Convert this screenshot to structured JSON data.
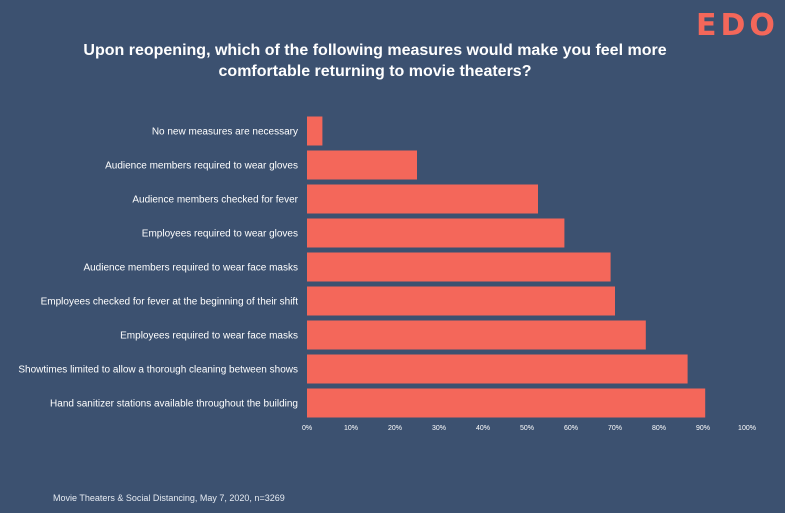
{
  "brand": {
    "logo_text": "EDO",
    "accent_color": "#f4675a"
  },
  "chart_data": {
    "type": "bar",
    "orientation": "horizontal",
    "title": "Upon reopening, which of the following measures would make you feel more comfortable returning to movie theaters?",
    "xlabel": "",
    "ylabel": "",
    "xlim": [
      0,
      100
    ],
    "x_ticks": [
      "0%",
      "10%",
      "20%",
      "30%",
      "40%",
      "50%",
      "60%",
      "70%",
      "80%",
      "90%",
      "100%"
    ],
    "categories": [
      "No new measures are necessary",
      "Audience members required to wear gloves",
      "Audience members checked for fever",
      "Employees required to wear gloves",
      "Audience members required to wear face masks",
      "Employees checked for fever at the beginning of their shift",
      "Employees required to wear face masks",
      "Showtimes limited to allow a thorough cleaning between shows",
      "Hand sanitizer stations available throughout the building"
    ],
    "values": [
      3.5,
      25,
      52.5,
      58.5,
      69,
      70,
      77,
      86.5,
      90.5
    ],
    "bar_color": "#f4675a",
    "grid": false,
    "legend": "none"
  },
  "footnote": "Movie Theaters & Social Distancing, May 7, 2020, n=3269"
}
